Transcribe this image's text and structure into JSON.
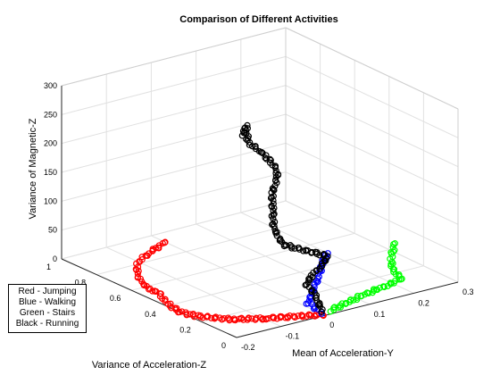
{
  "chart_data": {
    "type": "scatter",
    "title": "Comparison of Different Activities",
    "xlabel": "Mean of Acceleration-Y",
    "ylabel": "Variance of Acceleration-Z",
    "zlabel": "Variance of Magnetic-Z",
    "xlim": [
      -0.2,
      0.3
    ],
    "ylim": [
      0,
      1
    ],
    "zlim": [
      0,
      300
    ],
    "xticks": [
      "-0.2",
      "-0.1",
      "0",
      "0.1",
      "0.2",
      "0.3"
    ],
    "yticks": [
      "0",
      "0.2",
      "0.4",
      "0.6",
      "0.8",
      "1"
    ],
    "zticks": [
      "0",
      "50",
      "100",
      "150",
      "200",
      "250",
      "300"
    ],
    "grid": true,
    "legend_entries": [
      "Red - Jumping",
      "Blue - Walking",
      "Green - Stairs",
      "Black - Running"
    ],
    "legend_position": "bottom-left",
    "series": [
      {
        "color": "#ff0000",
        "marker": "circle",
        "points": [
          [
            0.0,
            0.01,
            0
          ],
          [
            -0.1,
            0.1,
            0
          ],
          [
            -0.15,
            0.16,
            0
          ],
          [
            -0.19,
            0.26,
            0
          ],
          [
            -0.2,
            0.33,
            0
          ],
          [
            -0.19,
            0.42,
            0
          ],
          [
            -0.17,
            0.52,
            0
          ],
          [
            -0.17,
            0.58,
            0
          ],
          [
            -0.16,
            0.65,
            0
          ],
          [
            -0.14,
            0.72,
            0
          ],
          [
            -0.11,
            0.8,
            0
          ],
          [
            -0.08,
            0.84,
            0
          ],
          [
            -0.04,
            0.88,
            0
          ],
          [
            0.0,
            0.92,
            0
          ]
        ]
      },
      {
        "color": "#0000ff",
        "marker": "circle",
        "points": [
          [
            0.0,
            0.02,
            2
          ],
          [
            0.0,
            0.06,
            5
          ],
          [
            0.0,
            0.1,
            8
          ],
          [
            0.02,
            0.13,
            12
          ],
          [
            0.04,
            0.16,
            20
          ],
          [
            0.06,
            0.19,
            30
          ],
          [
            0.08,
            0.22,
            45
          ],
          [
            0.1,
            0.24,
            55
          ]
        ]
      },
      {
        "color": "#00ff00",
        "marker": "circle",
        "points": [
          [
            0.02,
            0.02,
            2
          ],
          [
            0.06,
            0.03,
            6
          ],
          [
            0.1,
            0.04,
            10
          ],
          [
            0.14,
            0.05,
            12
          ],
          [
            0.18,
            0.06,
            14
          ],
          [
            0.2,
            0.07,
            16
          ],
          [
            0.19,
            0.1,
            30
          ],
          [
            0.2,
            0.13,
            45
          ],
          [
            0.22,
            0.16,
            60
          ]
        ]
      },
      {
        "color": "#000000",
        "marker": "circle",
        "points": [
          [
            0.0,
            0.02,
            5
          ],
          [
            0.0,
            0.05,
            25
          ],
          [
            -0.01,
            0.08,
            45
          ],
          [
            0.01,
            0.1,
            55
          ],
          [
            0.04,
            0.12,
            62
          ],
          [
            0.06,
            0.14,
            72
          ],
          [
            0.03,
            0.16,
            82
          ],
          [
            -0.02,
            0.19,
            100
          ],
          [
            -0.03,
            0.22,
            125
          ],
          [
            -0.02,
            0.25,
            150
          ],
          [
            -0.01,
            0.28,
            175
          ],
          [
            0.01,
            0.3,
            195
          ],
          [
            0.02,
            0.33,
            205
          ],
          [
            0.01,
            0.38,
            225
          ],
          [
            -0.01,
            0.42,
            245
          ],
          [
            0.0,
            0.45,
            260
          ],
          [
            -0.01,
            0.43,
            270
          ],
          [
            -0.03,
            0.4,
            262
          ]
        ]
      }
    ]
  }
}
